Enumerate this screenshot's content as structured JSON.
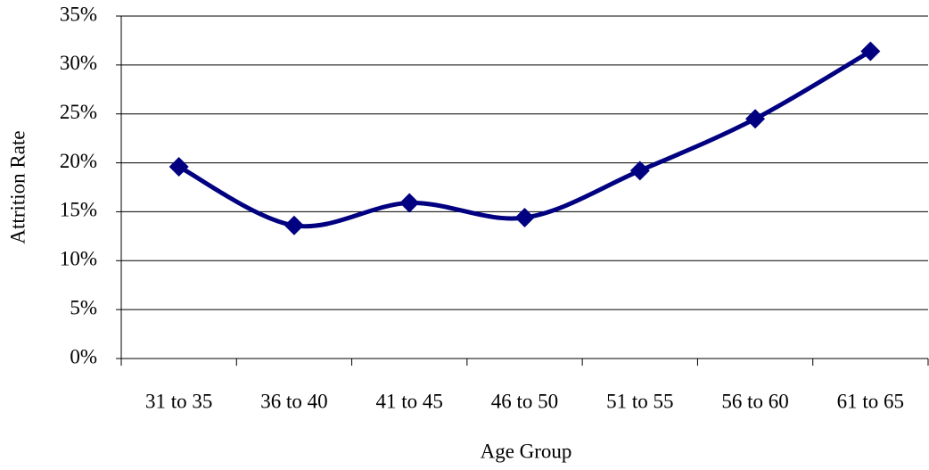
{
  "chart_data": {
    "type": "line",
    "x_label": "Age Group",
    "y_label": "Attrition Rate",
    "categories": [
      "31 to 35",
      "36 to 40",
      "41 to 45",
      "46 to 50",
      "51 to 55",
      "56 to 60",
      "61 to 65"
    ],
    "values": [
      19.6,
      13.6,
      15.9,
      14.4,
      19.2,
      24.5,
      31.4
    ],
    "color": "#000080",
    "ylim": [
      0,
      35
    ],
    "yticks": [
      {
        "value": 0,
        "label": "0%"
      },
      {
        "value": 5,
        "label": "5%"
      },
      {
        "value": 10,
        "label": "10%"
      },
      {
        "value": 15,
        "label": "15%"
      },
      {
        "value": 20,
        "label": "20%"
      },
      {
        "value": 25,
        "label": "25%"
      },
      {
        "value": 30,
        "label": "30%"
      },
      {
        "value": 35,
        "label": "35%"
      }
    ],
    "grid": true,
    "smooth": true
  }
}
